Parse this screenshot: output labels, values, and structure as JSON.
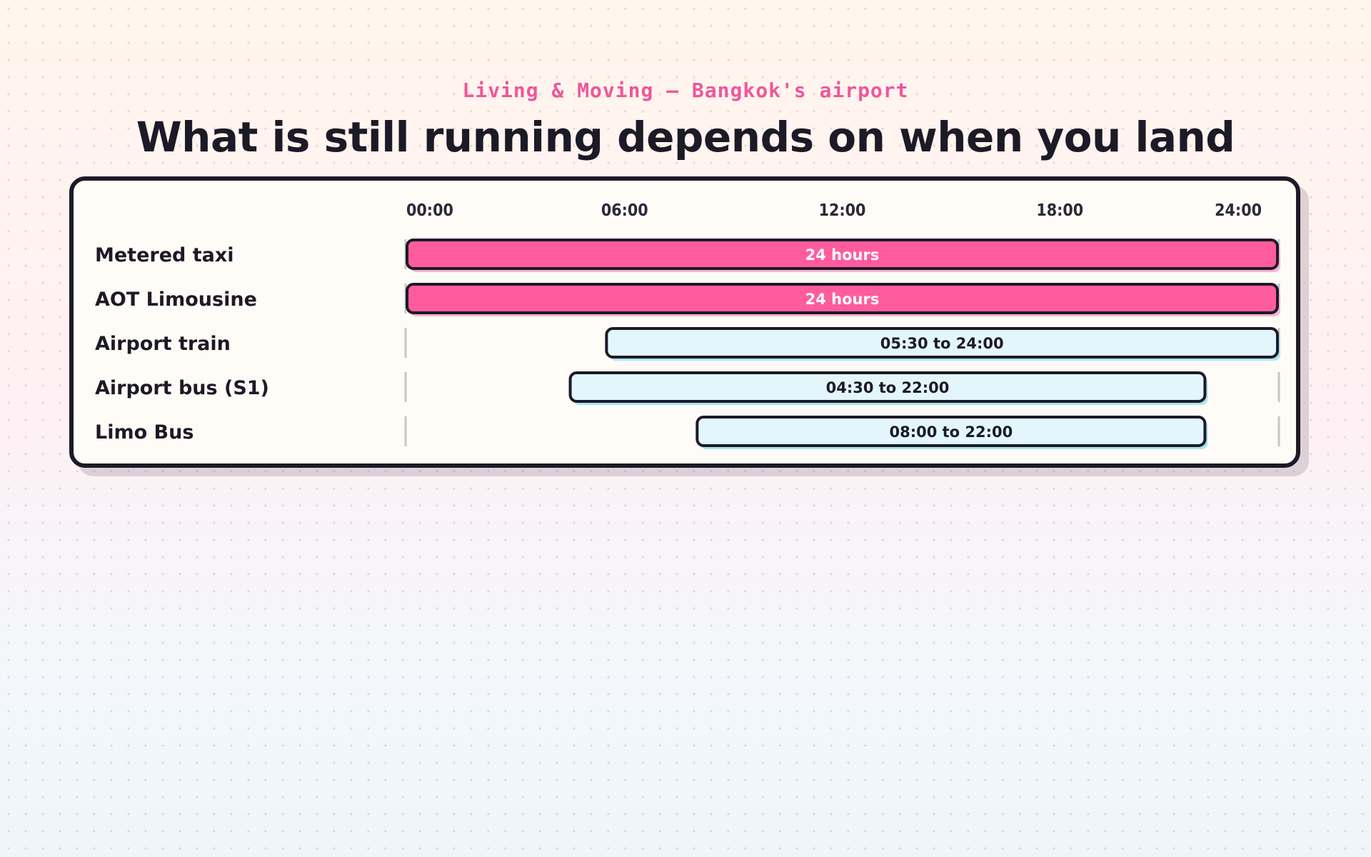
{
  "header": {
    "kicker": "Living & Moving — Bangkok's airport",
    "title": "What is still running depends on when you land"
  },
  "colors": {
    "full_day_fill": "#ff5c9d",
    "partial_fill": "#e3f6fb",
    "outline": "#1c1a26",
    "full_day_shadow": "#f7b3cf",
    "partial_shadow": "#a9e4ef",
    "full_day_text": "#ffffff",
    "partial_text": "#1c1a26"
  },
  "chart_data": {
    "type": "gantt",
    "x_unit": "hour of day",
    "xlim": [
      0,
      24
    ],
    "x_ticks": [
      {
        "value": 0,
        "label": "00:00"
      },
      {
        "value": 6,
        "label": "06:00"
      },
      {
        "value": 12,
        "label": "12:00"
      },
      {
        "value": 18,
        "label": "18:00"
      },
      {
        "value": 24,
        "label": "24:00"
      }
    ],
    "rows": [
      {
        "name": "Metered taxi",
        "start": 0,
        "end": 24,
        "label": "24 hours",
        "full_day": true
      },
      {
        "name": "AOT Limousine",
        "start": 0,
        "end": 24,
        "label": "24 hours",
        "full_day": true
      },
      {
        "name": "Airport train",
        "start": 5.5,
        "end": 24,
        "label": "05:30 to 24:00",
        "full_day": false
      },
      {
        "name": "Airport bus (S1)",
        "start": 4.5,
        "end": 22,
        "label": "04:30 to 22:00",
        "full_day": false
      },
      {
        "name": "Limo Bus",
        "start": 8,
        "end": 22,
        "label": "08:00 to 22:00",
        "full_day": false
      }
    ]
  }
}
